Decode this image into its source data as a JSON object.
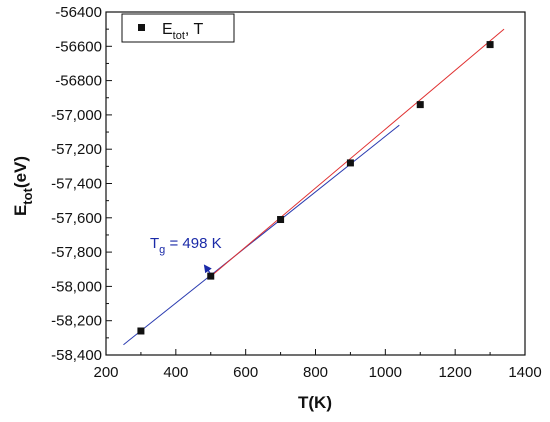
{
  "chart_data": {
    "type": "scatter",
    "xlabel": "T(K)",
    "ylabel": "E",
    "ylabel_sub": "tot",
    "ylabel_unit": "(eV)",
    "xlim": [
      200,
      1400
    ],
    "ylim": [
      -58400,
      -56400
    ],
    "x_ticks": [
      {
        "value": 200,
        "label": "200"
      },
      {
        "value": 400,
        "label": "400"
      },
      {
        "value": 600,
        "label": "600"
      },
      {
        "value": 800,
        "label": "800"
      },
      {
        "value": 1000,
        "label": "1000"
      },
      {
        "value": 1200,
        "label": "1200"
      },
      {
        "value": 1400,
        "label": "1400"
      }
    ],
    "y_ticks": [
      {
        "value": -56400,
        "label": "-56400"
      },
      {
        "value": -56600,
        "label": "-56600"
      },
      {
        "value": -56800,
        "label": "-56800"
      },
      {
        "value": -57000,
        "label": "-57,000"
      },
      {
        "value": -57200,
        "label": "-57,200"
      },
      {
        "value": -57400,
        "label": "-57,400"
      },
      {
        "value": -57600,
        "label": "-57,600"
      },
      {
        "value": -57800,
        "label": "-57,800"
      },
      {
        "value": -58000,
        "label": "-58,000"
      },
      {
        "value": -58200,
        "label": "-58,200"
      },
      {
        "value": -58400,
        "label": "-58,400"
      }
    ],
    "series": [
      {
        "name": "E_tot, T",
        "name_main": "E",
        "name_sub": "tot",
        "name_rest": ", T",
        "marker": "square",
        "color": "#111111",
        "x": [
          300,
          500,
          700,
          900,
          1100,
          1300
        ],
        "y": [
          -58260,
          -57940,
          -57610,
          -57280,
          -56940,
          -56590
        ]
      }
    ],
    "fit_lines": [
      {
        "color": "#2a3bb0",
        "x": [
          250,
          1040
        ],
        "y": [
          -58340,
          -57060
        ]
      },
      {
        "color": "#e03030",
        "x": [
          495,
          1340
        ],
        "y": [
          -57950,
          -56500
        ]
      }
    ],
    "annotation": {
      "text_main": "T",
      "text_sub": "g",
      "text_rest": " = 498 K",
      "color": "#1a2aa8",
      "arrow_to": {
        "x": 495,
        "y": -57930
      }
    },
    "grid": false,
    "legend_position": "top-left"
  }
}
